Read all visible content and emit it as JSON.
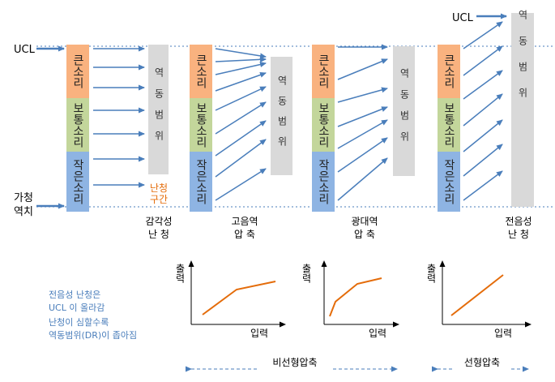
{
  "labels": {
    "ucl_left": "UCL",
    "ucl_right": "UCL",
    "threshold_line1": "가청",
    "threshold_line2": "역치",
    "loud": "큰소리",
    "normal": "보통소리",
    "soft": "작은소리",
    "dynamic_range": "역동범위",
    "hearing_gap_line1": "난청",
    "hearing_gap_line2": "구간"
  },
  "panels": [
    {
      "id": "sensory",
      "caption1": "감각성",
      "caption2": "난 청"
    },
    {
      "id": "high-compression",
      "caption1": "고음역",
      "caption2": "압 축"
    },
    {
      "id": "wide-compression",
      "caption1": "광대역",
      "caption2": "압 축"
    },
    {
      "id": "conductive",
      "caption1": "전음성",
      "caption2": "난 청"
    }
  ],
  "notes": {
    "line1": "전음성 난청은",
    "line2": "UCL 이 올라감",
    "line3": "난청이 심할수록",
    "line4": "역동범위(DR)이 좁아짐"
  },
  "graphs": {
    "y_label": "출력",
    "x_label": "입력"
  },
  "brackets": {
    "nonlinear": "비선형압축",
    "linear": "선형압축"
  },
  "colors": {
    "loud": "#f9b27f",
    "normal": "#c3d69b",
    "soft": "#8eb4e3",
    "range_box": "#d9d9d9",
    "arrow": "#4a7ebb",
    "curve": "#e46c0a",
    "note_text": "#4a7ebb",
    "gap_text": "#e46c0a"
  }
}
